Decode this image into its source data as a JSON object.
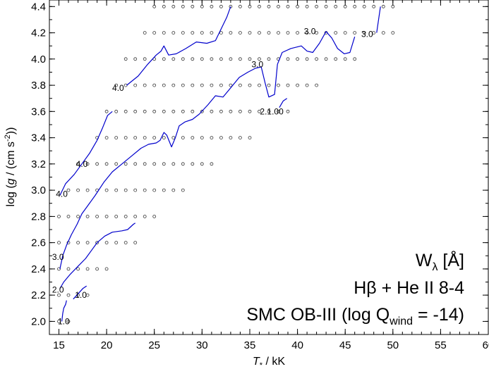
{
  "chart_data": {
    "type": "line",
    "xlabel": {
      "italic": "T",
      "sub": "*",
      "rest": " / kK"
    },
    "ylabel": {
      "pre": "log (",
      "italic": "g",
      "mid": " / (cm s",
      "sup": "-2",
      "post": "))"
    },
    "xlim": [
      14,
      60
    ],
    "ylim": [
      1.9,
      4.45
    ],
    "xticks": [
      15,
      20,
      25,
      30,
      35,
      40,
      45,
      50,
      55,
      60
    ],
    "yticks": [
      2.0,
      2.2,
      2.4,
      2.6,
      2.8,
      3.0,
      3.2,
      3.4,
      3.6,
      3.8,
      4.0,
      4.2,
      4.4
    ],
    "xtick_labels": [
      "15",
      "20",
      "25",
      "30",
      "35",
      "40",
      "45",
      "50",
      "55",
      "60"
    ],
    "ytick_labels": [
      "2.0",
      "2.2",
      "2.4",
      "2.6",
      "2.8",
      "3.0",
      "3.2",
      "3.4",
      "3.6",
      "3.8",
      "4.0",
      "4.2",
      "4.4"
    ],
    "annotation": {
      "line1": {
        "main": "W",
        "sub": "λ",
        "rest": "  [Å]"
      },
      "line2": "Hβ + He II 8-4",
      "line3": {
        "main": "SMC OB-III (log Q",
        "sub": "wind",
        "rest": " = -14)"
      }
    },
    "line_color": "#0000cc",
    "grid_rows": [
      {
        "logg": 4.4,
        "tmin": 25,
        "tmax": 50
      },
      {
        "logg": 4.2,
        "tmin": 24,
        "tmax": 50
      },
      {
        "logg": 4.0,
        "tmin": 22,
        "tmax": 46
      },
      {
        "logg": 3.8,
        "tmin": 21,
        "tmax": 42
      },
      {
        "logg": 3.6,
        "tmin": 20,
        "tmax": 39
      },
      {
        "logg": 3.4,
        "tmin": 19,
        "tmax": 35
      },
      {
        "logg": 3.2,
        "tmin": 17,
        "tmax": 31
      },
      {
        "logg": 3.0,
        "tmin": 16,
        "tmax": 28
      },
      {
        "logg": 2.8,
        "tmin": 15,
        "tmax": 25
      },
      {
        "logg": 2.6,
        "tmin": 15,
        "tmax": 23
      },
      {
        "logg": 2.4,
        "tmin": 15,
        "tmax": 20
      },
      {
        "logg": 2.2,
        "tmin": 15,
        "tmax": 18
      },
      {
        "logg": 2.0,
        "tmin": 15,
        "tmax": 16
      }
    ],
    "contours": [
      {
        "label": "1.0",
        "points": [
          [
            15.3,
            2.0
          ],
          [
            15.4,
            2.06
          ],
          [
            15.5,
            2.1
          ],
          [
            15.7,
            2.13
          ],
          [
            15.8,
            2.16
          ]
        ]
      },
      {
        "label": "1.0",
        "points": [
          [
            16.5,
            2.17
          ],
          [
            17.0,
            2.21
          ],
          [
            17.5,
            2.25
          ],
          [
            17.9,
            2.27
          ]
        ]
      },
      {
        "label": "2.0",
        "points": [
          [
            15.1,
            2.25
          ],
          [
            15.5,
            2.3
          ],
          [
            16.2,
            2.36
          ],
          [
            17.0,
            2.42
          ],
          [
            17.8,
            2.48
          ],
          [
            18.4,
            2.54
          ],
          [
            19.0,
            2.6
          ],
          [
            19.8,
            2.65
          ],
          [
            20.6,
            2.68
          ],
          [
            21.6,
            2.69
          ],
          [
            22.2,
            2.7
          ],
          [
            22.8,
            2.74
          ],
          [
            23.0,
            2.75
          ]
        ]
      },
      {
        "label": "3.0",
        "points": [
          [
            15.1,
            2.4
          ],
          [
            15.4,
            2.5
          ],
          [
            15.8,
            2.58
          ],
          [
            16.3,
            2.66
          ],
          [
            16.9,
            2.74
          ],
          [
            17.4,
            2.82
          ],
          [
            18.0,
            2.88
          ],
          [
            18.8,
            2.96
          ],
          [
            19.7,
            3.06
          ],
          [
            20.6,
            3.14
          ],
          [
            21.6,
            3.2
          ],
          [
            22.6,
            3.26
          ],
          [
            23.6,
            3.32
          ],
          [
            24.4,
            3.35
          ],
          [
            25.2,
            3.36
          ],
          [
            25.6,
            3.38
          ],
          [
            26.0,
            3.44
          ],
          [
            26.3,
            3.42
          ],
          [
            26.8,
            3.33
          ],
          [
            27.2,
            3.4
          ],
          [
            27.6,
            3.49
          ],
          [
            28.2,
            3.52
          ],
          [
            29.0,
            3.54
          ],
          [
            29.7,
            3.58
          ],
          [
            30.6,
            3.65
          ],
          [
            31.4,
            3.72
          ],
          [
            32.2,
            3.71
          ],
          [
            33.0,
            3.78
          ],
          [
            33.9,
            3.86
          ],
          [
            34.8,
            3.9
          ],
          [
            35.6,
            3.93
          ],
          [
            36.2,
            3.94
          ],
          [
            36.6,
            3.82
          ],
          [
            37.0,
            3.71
          ],
          [
            37.6,
            3.73
          ],
          [
            37.9,
            3.96
          ],
          [
            38.4,
            4.05
          ],
          [
            39.3,
            4.08
          ],
          [
            40.4,
            4.1
          ],
          [
            41.0,
            4.06
          ],
          [
            41.6,
            4.05
          ],
          [
            42.3,
            4.12
          ],
          [
            43.0,
            4.21
          ],
          [
            43.6,
            4.16
          ],
          [
            44.2,
            4.08
          ],
          [
            44.9,
            4.04
          ],
          [
            45.5,
            4.05
          ],
          [
            46.0,
            4.17
          ]
        ]
      },
      {
        "label": "4.0",
        "points": [
          [
            15.1,
            2.96
          ],
          [
            15.7,
            3.05
          ],
          [
            16.6,
            3.12
          ],
          [
            17.4,
            3.2
          ],
          [
            18.2,
            3.28
          ],
          [
            19.0,
            3.38
          ],
          [
            19.6,
            3.48
          ],
          [
            20.1,
            3.57
          ],
          [
            20.6,
            3.6
          ]
        ]
      },
      {
        "label": "4.0",
        "points": [
          [
            22.1,
            3.8
          ],
          [
            23.3,
            3.87
          ],
          [
            24.3,
            3.96
          ],
          [
            25.2,
            4.03
          ],
          [
            25.7,
            4.06
          ],
          [
            26.0,
            4.1
          ],
          [
            26.5,
            4.03
          ],
          [
            27.3,
            4.04
          ],
          [
            28.3,
            4.08
          ],
          [
            29.4,
            4.13
          ],
          [
            30.5,
            4.12
          ],
          [
            31.4,
            4.14
          ],
          [
            32.0,
            4.23
          ],
          [
            32.6,
            4.32
          ],
          [
            33.0,
            4.4
          ]
        ]
      },
      {
        "label": "",
        "points": [
          [
            38.1,
            3.63
          ],
          [
            38.5,
            3.68
          ],
          [
            38.9,
            3.7
          ]
        ]
      },
      {
        "label": "",
        "points": [
          [
            48.3,
            4.2
          ],
          [
            48.5,
            4.3
          ],
          [
            48.7,
            4.4
          ]
        ]
      }
    ],
    "contour_labels": [
      {
        "text": "1.0",
        "x": 15.5,
        "y": 2.0
      },
      {
        "text": "1.0",
        "x": 17.3,
        "y": 2.2
      },
      {
        "text": "2.0",
        "x": 14.9,
        "y": 2.24
      },
      {
        "text": "3.0",
        "x": 14.9,
        "y": 2.49
      },
      {
        "text": "4.0",
        "x": 15.3,
        "y": 2.97
      },
      {
        "text": "4.0",
        "x": 17.4,
        "y": 3.2
      },
      {
        "text": "4.0",
        "x": 21.2,
        "y": 3.78
      },
      {
        "text": "3.0",
        "x": 35.8,
        "y": 3.96
      },
      {
        "text": "2.1.00",
        "x": 37.3,
        "y": 3.6
      },
      {
        "text": "3.0",
        "x": 41.3,
        "y": 4.21
      },
      {
        "text": "3.0",
        "x": 47.3,
        "y": 4.19
      }
    ]
  }
}
